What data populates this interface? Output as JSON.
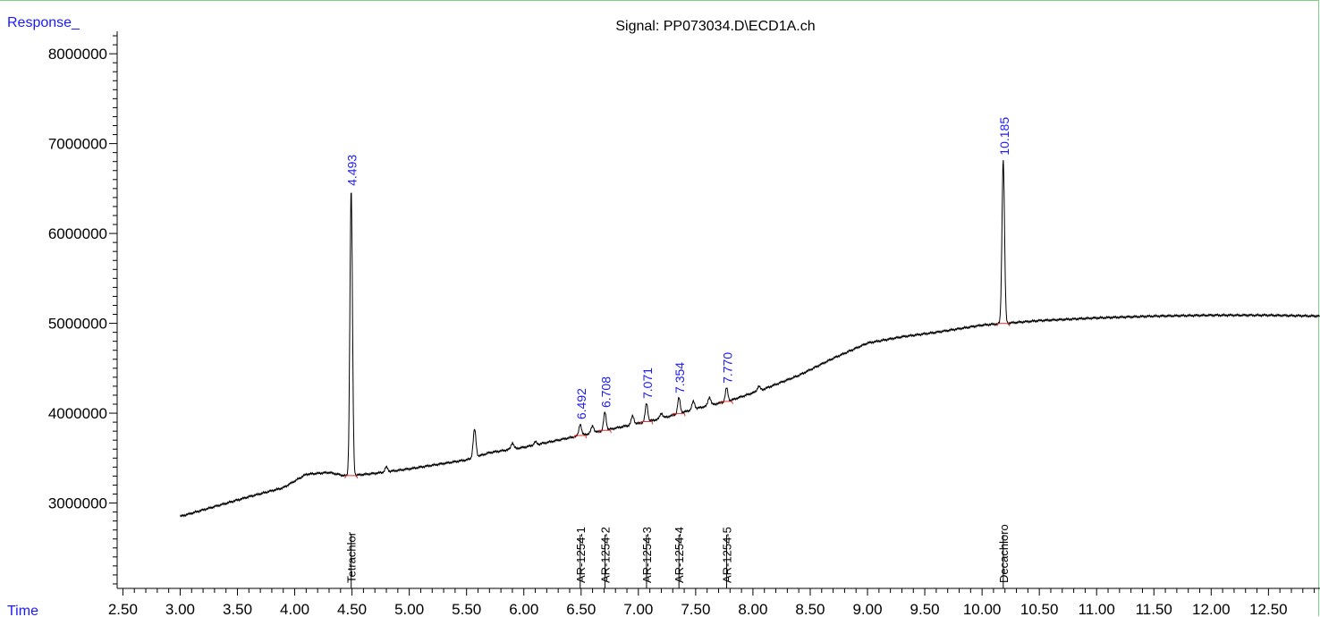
{
  "chart_data": {
    "type": "line",
    "title": "Signal: PP073034.D\\ECD1A.ch",
    "ylabel": "Response_",
    "xlabel": "Time",
    "xlim": [
      2.45,
      12.95
    ],
    "ylim": [
      2050000,
      8250000
    ],
    "x_ticks": [
      2.5,
      3.0,
      3.5,
      4.0,
      4.5,
      5.0,
      5.5,
      6.0,
      6.5,
      7.0,
      7.5,
      8.0,
      8.5,
      9.0,
      9.5,
      10.0,
      10.5,
      11.0,
      11.5,
      12.0,
      12.5
    ],
    "y_ticks": [
      3000000,
      4000000,
      5000000,
      6000000,
      7000000,
      8000000
    ],
    "baseline": [
      [
        3.0,
        2850000
      ],
      [
        3.3,
        2960000
      ],
      [
        3.6,
        3070000
      ],
      [
        3.9,
        3170000
      ],
      [
        4.1,
        3320000
      ],
      [
        4.3,
        3340000
      ],
      [
        4.45,
        3300000
      ],
      [
        4.7,
        3330000
      ],
      [
        5.0,
        3380000
      ],
      [
        5.3,
        3440000
      ],
      [
        5.5,
        3480000
      ],
      [
        5.7,
        3560000
      ],
      [
        6.0,
        3620000
      ],
      [
        6.3,
        3700000
      ],
      [
        6.6,
        3780000
      ],
      [
        6.9,
        3860000
      ],
      [
        7.2,
        3940000
      ],
      [
        7.5,
        4050000
      ],
      [
        7.8,
        4140000
      ],
      [
        8.1,
        4270000
      ],
      [
        8.4,
        4420000
      ],
      [
        8.7,
        4610000
      ],
      [
        9.0,
        4780000
      ],
      [
        9.3,
        4850000
      ],
      [
        9.6,
        4900000
      ],
      [
        10.0,
        4980000
      ],
      [
        10.5,
        5030000
      ],
      [
        11.0,
        5060000
      ],
      [
        11.5,
        5080000
      ],
      [
        12.0,
        5090000
      ],
      [
        12.5,
        5090000
      ],
      [
        12.95,
        5080000
      ]
    ],
    "peaks": [
      {
        "rt": 4.493,
        "height": 6480000,
        "label": "4.493",
        "compound": "Tetrachlor"
      },
      {
        "rt": 6.492,
        "height": 3880000,
        "label": "6.492",
        "compound": "AR-1254-1"
      },
      {
        "rt": 6.708,
        "height": 4010000,
        "label": "6.708",
        "compound": "AR-1254-2"
      },
      {
        "rt": 7.071,
        "height": 4110000,
        "label": "7.071",
        "compound": "AR-1254-3"
      },
      {
        "rt": 7.354,
        "height": 4170000,
        "label": "7.354",
        "compound": "AR-1254-4"
      },
      {
        "rt": 7.77,
        "height": 4280000,
        "label": "7.770",
        "compound": "AR-1254-5"
      },
      {
        "rt": 10.185,
        "height": 6820000,
        "label": "10.185",
        "compound": "Decachloro"
      }
    ],
    "minor_peaks": [
      {
        "rt": 4.8,
        "height": 3400000
      },
      {
        "rt": 5.57,
        "height": 3820000
      },
      {
        "rt": 5.9,
        "height": 3670000
      },
      {
        "rt": 6.1,
        "height": 3680000
      },
      {
        "rt": 6.6,
        "height": 3860000
      },
      {
        "rt": 6.95,
        "height": 3970000
      },
      {
        "rt": 7.2,
        "height": 4000000
      },
      {
        "rt": 7.48,
        "height": 4130000
      },
      {
        "rt": 7.62,
        "height": 4180000
      },
      {
        "rt": 8.05,
        "height": 4300000
      }
    ]
  }
}
